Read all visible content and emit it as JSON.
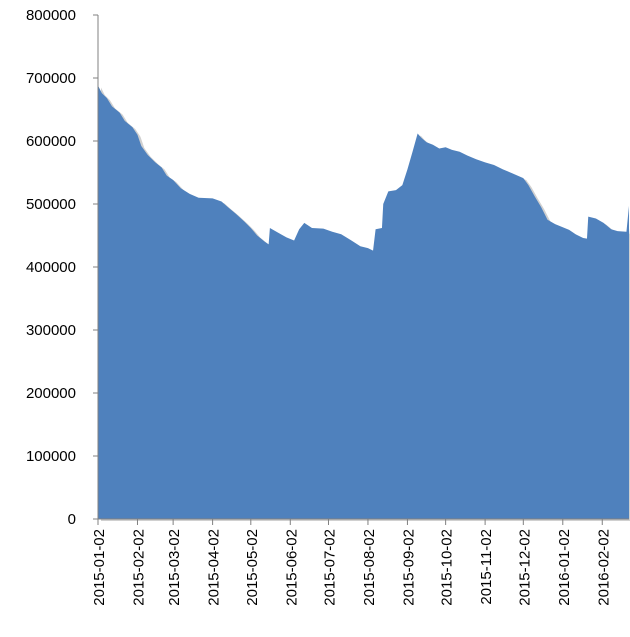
{
  "chart_data": {
    "type": "area",
    "title": "",
    "xlabel": "",
    "ylabel": "",
    "ylim": [
      0,
      800000
    ],
    "xlim": [
      "2015-01-02",
      "2016-02-23"
    ],
    "grid": false,
    "legend": "none",
    "colors": {
      "fill": "#4F81BD",
      "shadow": "#D0D0D0",
      "axis": "#808080"
    },
    "y_ticks": [
      {
        "value": 0,
        "label": "0"
      },
      {
        "value": 100000,
        "label": "100000"
      },
      {
        "value": 200000,
        "label": "200000"
      },
      {
        "value": 300000,
        "label": "300000"
      },
      {
        "value": 400000,
        "label": "400000"
      },
      {
        "value": 500000,
        "label": "500000"
      },
      {
        "value": 600000,
        "label": "600000"
      },
      {
        "value": 700000,
        "label": "700000"
      },
      {
        "value": 800000,
        "label": "800000"
      }
    ],
    "x_ticks": [
      {
        "value": "2015-01-02",
        "label": "2015-01-02"
      },
      {
        "value": "2015-02-02",
        "label": "2015-02-02"
      },
      {
        "value": "2015-03-02",
        "label": "2015-03-02"
      },
      {
        "value": "2015-04-02",
        "label": "2015-04-02"
      },
      {
        "value": "2015-05-02",
        "label": "2015-05-02"
      },
      {
        "value": "2015-06-02",
        "label": "2015-06-02"
      },
      {
        "value": "2015-07-02",
        "label": "2015-07-02"
      },
      {
        "value": "2015-08-02",
        "label": "2015-08-02"
      },
      {
        "value": "2015-09-02",
        "label": "2015-09-02"
      },
      {
        "value": "2015-10-02",
        "label": "2015-10-02"
      },
      {
        "value": "2015-11-02",
        "label": "2015-11-02"
      },
      {
        "value": "2015-12-02",
        "label": "2015-12-02"
      },
      {
        "value": "2016-01-02",
        "label": "2016-01-02"
      },
      {
        "value": "2016-02-02",
        "label": "2016-02-02"
      }
    ],
    "series": [
      {
        "points": [
          [
            "2015-01-02",
            688000
          ],
          [
            "2015-01-05",
            676000
          ],
          [
            "2015-01-09",
            668000
          ],
          [
            "2015-01-13",
            655000
          ],
          [
            "2015-01-19",
            645000
          ],
          [
            "2015-01-23",
            632000
          ],
          [
            "2015-01-29",
            622000
          ],
          [
            "2015-02-02",
            610000
          ],
          [
            "2015-02-05",
            592000
          ],
          [
            "2015-02-10",
            578000
          ],
          [
            "2015-02-16",
            566000
          ],
          [
            "2015-02-21",
            558000
          ],
          [
            "2015-02-25",
            545000
          ],
          [
            "2015-03-02",
            538000
          ],
          [
            "2015-03-08",
            525000
          ],
          [
            "2015-03-15",
            516000
          ],
          [
            "2015-03-22",
            510000
          ],
          [
            "2015-04-02",
            509000
          ],
          [
            "2015-04-09",
            504000
          ],
          [
            "2015-04-14",
            495000
          ],
          [
            "2015-04-20",
            485000
          ],
          [
            "2015-04-27",
            472000
          ],
          [
            "2015-05-02",
            462000
          ],
          [
            "2015-05-07",
            450000
          ],
          [
            "2015-05-13",
            440000
          ],
          [
            "2015-05-16",
            436000
          ],
          [
            "2015-05-17",
            462000
          ],
          [
            "2015-05-23",
            455000
          ],
          [
            "2015-05-30",
            447000
          ],
          [
            "2015-06-05",
            442000
          ],
          [
            "2015-06-09",
            460000
          ],
          [
            "2015-06-13",
            470000
          ],
          [
            "2015-06-19",
            462000
          ],
          [
            "2015-06-28",
            461000
          ],
          [
            "2015-07-05",
            456000
          ],
          [
            "2015-07-12",
            452000
          ],
          [
            "2015-07-20",
            442000
          ],
          [
            "2015-07-27",
            433000
          ],
          [
            "2015-08-02",
            430000
          ],
          [
            "2015-08-06",
            426000
          ],
          [
            "2015-08-08",
            460000
          ],
          [
            "2015-08-13",
            462000
          ],
          [
            "2015-08-14",
            500000
          ],
          [
            "2015-08-18",
            520000
          ],
          [
            "2015-08-24",
            522000
          ],
          [
            "2015-08-29",
            530000
          ],
          [
            "2015-09-02",
            555000
          ],
          [
            "2015-09-06",
            583000
          ],
          [
            "2015-09-10",
            612000
          ],
          [
            "2015-09-13",
            605000
          ],
          [
            "2015-09-17",
            598000
          ],
          [
            "2015-09-22",
            594000
          ],
          [
            "2015-09-27",
            588000
          ],
          [
            "2015-10-02",
            590000
          ],
          [
            "2015-10-07",
            586000
          ],
          [
            "2015-10-13",
            583000
          ],
          [
            "2015-10-19",
            577000
          ],
          [
            "2015-10-26",
            571000
          ],
          [
            "2015-11-02",
            566000
          ],
          [
            "2015-11-09",
            562000
          ],
          [
            "2015-11-16",
            555000
          ],
          [
            "2015-11-23",
            549000
          ],
          [
            "2015-12-02",
            541000
          ],
          [
            "2015-12-06",
            530000
          ],
          [
            "2015-12-11",
            512000
          ],
          [
            "2015-12-16",
            495000
          ],
          [
            "2015-12-21",
            475000
          ],
          [
            "2015-12-27",
            468000
          ],
          [
            "2016-01-02",
            463000
          ],
          [
            "2016-01-07",
            459000
          ],
          [
            "2016-01-12",
            452000
          ],
          [
            "2016-01-18",
            446000
          ],
          [
            "2016-01-21",
            445000
          ],
          [
            "2016-01-22",
            480000
          ],
          [
            "2016-01-28",
            477000
          ],
          [
            "2016-02-03",
            470000
          ],
          [
            "2016-02-09",
            460000
          ],
          [
            "2016-02-14",
            457000
          ],
          [
            "2016-02-21",
            456000
          ],
          [
            "2016-02-23",
            497000
          ]
        ]
      }
    ]
  }
}
